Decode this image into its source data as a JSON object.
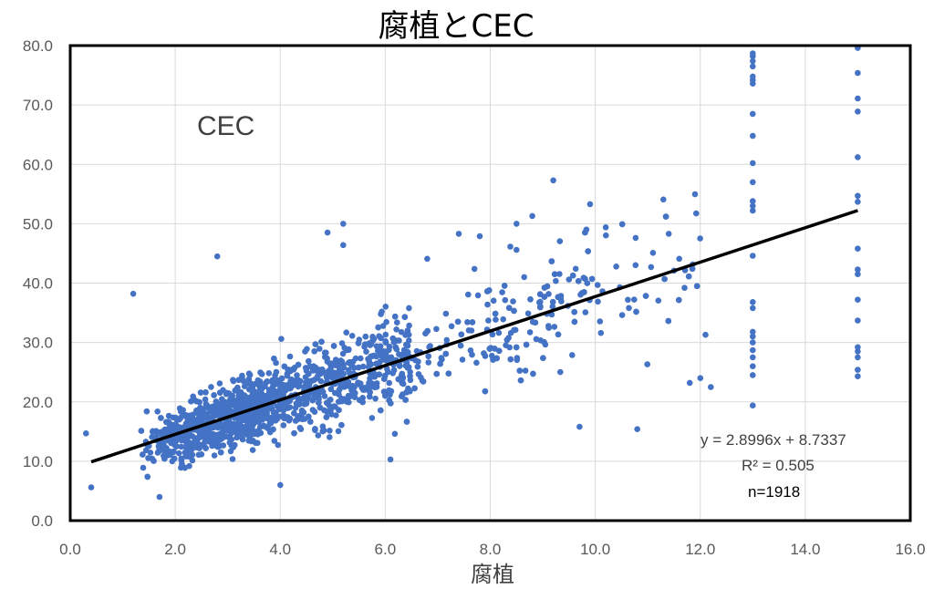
{
  "chart_data": {
    "type": "scatter",
    "title": "腐植とCEC",
    "xlabel": "腐植",
    "ylabel": "",
    "series_label": "CEC",
    "xlim": [
      0,
      16
    ],
    "ylim": [
      0,
      80
    ],
    "x_ticks": [
      "0.0",
      "2.0",
      "4.0",
      "6.0",
      "8.0",
      "10.0",
      "12.0",
      "14.0",
      "16.0"
    ],
    "y_ticks": [
      "0.0",
      "10.0",
      "20.0",
      "30.0",
      "40.0",
      "50.0",
      "60.0",
      "70.0",
      "80.0"
    ],
    "grid": true,
    "point_color": "#4472C4",
    "trendline": {
      "slope": 2.8996,
      "intercept": 8.7337,
      "x_range": [
        0.4,
        15.0
      ],
      "color": "#000000"
    },
    "equation_text": "y = 2.8996x + 8.7337",
    "r2_text": "R² = 0.505",
    "n_text": "n=1918",
    "points": [
      [
        13,
        19.4
      ],
      [
        13,
        24.5
      ],
      [
        13,
        26.0
      ],
      [
        13,
        27.5
      ],
      [
        13,
        28.7
      ],
      [
        13,
        30.0
      ],
      [
        13,
        31.0
      ],
      [
        13,
        31.8
      ],
      [
        13,
        35.8
      ],
      [
        13,
        36.8
      ],
      [
        13,
        44.6
      ],
      [
        13,
        52.2
      ],
      [
        13,
        53.0
      ],
      [
        13,
        53.8
      ],
      [
        13,
        57.0
      ],
      [
        13,
        60.2
      ],
      [
        13,
        64.8
      ],
      [
        13,
        68.5
      ],
      [
        13,
        73.6
      ],
      [
        13,
        74.2
      ],
      [
        13,
        74.8
      ],
      [
        13,
        76.5
      ],
      [
        13,
        77.4
      ],
      [
        13,
        78.2
      ],
      [
        13,
        78.7
      ],
      [
        15,
        24.3
      ],
      [
        15,
        25.4
      ],
      [
        15,
        27.5
      ],
      [
        15,
        28.5
      ],
      [
        15,
        29.2
      ],
      [
        15,
        33.7
      ],
      [
        15,
        37.2
      ],
      [
        15,
        41.5
      ],
      [
        15,
        42.3
      ],
      [
        15,
        45.8
      ],
      [
        15,
        53.7
      ],
      [
        15,
        54.7
      ],
      [
        15,
        61.2
      ],
      [
        15,
        68.9
      ],
      [
        15,
        71.1
      ],
      [
        15,
        75.4
      ],
      [
        15,
        79.6
      ],
      [
        9.2,
        57.3
      ],
      [
        9.9,
        53.3
      ],
      [
        10.2,
        49.4
      ],
      [
        8.8,
        51.3
      ],
      [
        8.5,
        50.0
      ],
      [
        5.2,
        50.0
      ],
      [
        4.9,
        48.5
      ],
      [
        5.2,
        46.4
      ],
      [
        7.4,
        48.3
      ],
      [
        7.8,
        47.9
      ],
      [
        8.5,
        45.6
      ],
      [
        11.4,
        48.3
      ],
      [
        2.8,
        44.5
      ],
      [
        6.8,
        44.1
      ],
      [
        7.7,
        42.4
      ],
      [
        1.2,
        38.2
      ],
      [
        0.3,
        14.7
      ],
      [
        0.4,
        5.6
      ],
      [
        1.7,
        4.0
      ],
      [
        4.0,
        6.0
      ],
      [
        6.1,
        10.3
      ],
      [
        12.1,
        31.3
      ],
      [
        11.7,
        39.2
      ],
      [
        12.0,
        24.0
      ],
      [
        11.8,
        23.2
      ],
      [
        10.8,
        15.4
      ],
      [
        9.7,
        15.8
      ],
      [
        11.1,
        45.1
      ],
      [
        11.5,
        42.1
      ],
      [
        10.4,
        42.8
      ],
      [
        9.5,
        40.6
      ],
      [
        12.2,
        22.5
      ]
    ]
  }
}
